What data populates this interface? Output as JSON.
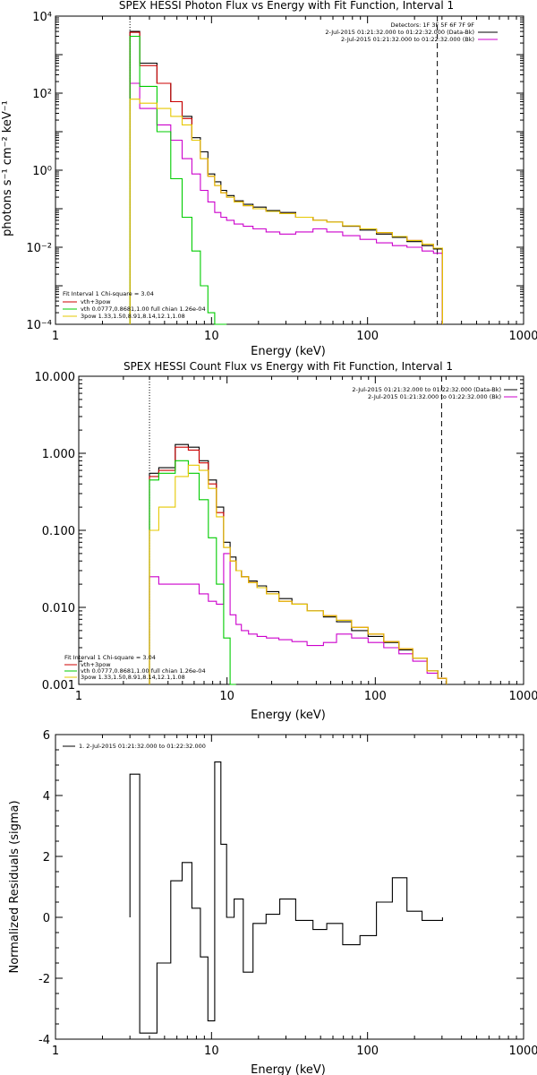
{
  "panels": [
    {
      "title": "SPEX HESSI Photon Flux vs Energy with Fit Function, Interval 1",
      "ylabel": "photons s⁻¹ cm⁻² keV⁻¹",
      "xlabel": "Energy (keV)",
      "yticks": [
        "10⁴",
        "10²",
        "10⁰",
        "10⁻²",
        "10⁻⁴"
      ],
      "xticks": [
        "1",
        "10",
        "100",
        "1000"
      ],
      "info": [
        "Detectors: 1F 3F 5F 6F 7F 9F",
        "2-Jul-2015 01:21:32.000 to 01:22:32.000 (Data-Bk)",
        "2-Jul-2015 01:21:32.000 to 01:22:32.000 (Bk)"
      ],
      "legend": [
        "Fit Interval 1    Chi-square = 3.04",
        "vth+3pow",
        "vth 0.0777,0.8681,1.00  full chian 1.26e-04",
        "3pow 1.33,1.50,8.91,8.14,12.1,1.08"
      ]
    },
    {
      "title": "SPEX HESSI Count Flux vs Energy with Fit Function, Interval 1",
      "ylabel": "",
      "xlabel": "Energy (keV)",
      "yticks": [
        "10.000",
        "1.000",
        "0.100",
        "0.010",
        "0.001"
      ],
      "xticks": [
        "1",
        "10",
        "100",
        "1000"
      ],
      "info": [
        "2-Jul-2015 01:21:32.000 to 01:22:32.000 (Data-Bk)",
        "2-Jul-2015 01:21:32.000 to 01:22:32.000 (Bk)"
      ],
      "legend": [
        "Fit Interval 1    Chi-square = 3.04",
        "vth+3pow",
        "vth 0.0777,0.8681,1.00  full chian 1.26e-04",
        "3pow 1.33,1.50,8.91,8.14,12.1,1.08"
      ]
    },
    {
      "title": "",
      "ylabel": "Normalized Residuals (sigma)",
      "xlabel": "Energy (keV)",
      "yticks": [
        "6",
        "4",
        "2",
        "0",
        "-2",
        "-4"
      ],
      "xticks": [
        "1",
        "10",
        "100",
        "1000"
      ],
      "legend": [
        "1.  2-Jul-2015 01:21:32.000 to 01:22:32.000"
      ]
    }
  ],
  "colors": {
    "data": "#000000",
    "background": "#cc00cc",
    "total_fit": "#cc0000",
    "thermal": "#00cc00",
    "power_law": "#e6c800"
  },
  "chart_data": [
    {
      "type": "line",
      "title": "SPEX HESSI Photon Flux vs Energy with Fit Function, Interval 1",
      "xlabel": "Energy (keV)",
      "ylabel": "photons s-1 cm-2 keV-1",
      "xscale": "log",
      "yscale": "log",
      "xlim": [
        1,
        1000
      ],
      "ylim": [
        0.0001,
        10000
      ],
      "fit_range_keV": [
        3,
        280
      ],
      "x": [
        3,
        4,
        5,
        6,
        7,
        8,
        9,
        10,
        11,
        12,
        13,
        15,
        17,
        20,
        25,
        30,
        40,
        50,
        60,
        80,
        100,
        130,
        160,
        200,
        250,
        280
      ],
      "series": [
        {
          "name": "Data-Bk",
          "values": [
            4000,
            600,
            180,
            60,
            25,
            7,
            3,
            0.8,
            0.5,
            0.3,
            0.22,
            0.16,
            0.13,
            0.11,
            0.09,
            0.08,
            0.06,
            0.05,
            0.045,
            0.035,
            0.028,
            0.022,
            0.018,
            0.014,
            0.011,
            0.009
          ]
        },
        {
          "name": "Bk",
          "values": [
            180,
            40,
            15,
            6,
            2,
            0.8,
            0.3,
            0.15,
            0.08,
            0.06,
            0.05,
            0.04,
            0.035,
            0.03,
            0.025,
            0.022,
            0.025,
            0.03,
            0.025,
            0.02,
            0.016,
            0.013,
            0.011,
            0.01,
            0.008,
            0.007
          ]
        },
        {
          "name": "vth+3pow",
          "values": [
            3800,
            520,
            180,
            60,
            22,
            6,
            2,
            0.7,
            0.4,
            0.26,
            0.2,
            0.15,
            0.12,
            0.1,
            0.085,
            0.075,
            0.06,
            0.05,
            0.045,
            0.036,
            0.03,
            0.024,
            0.019,
            0.015,
            0.012,
            0.0095
          ]
        },
        {
          "name": "vth",
          "values": [
            3000,
            150,
            10,
            0.6,
            0.06,
            0.008,
            0.001,
            0.0002,
            0.0001,
            5e-05,
            null,
            null,
            null,
            null,
            null,
            null,
            null,
            null,
            null,
            null,
            null,
            null,
            null,
            null,
            null,
            null
          ]
        },
        {
          "name": "3pow",
          "values": [
            70,
            55,
            40,
            25,
            15,
            6,
            2,
            0.7,
            0.4,
            0.26,
            0.2,
            0.15,
            0.12,
            0.1,
            0.085,
            0.075,
            0.06,
            0.05,
            0.045,
            0.036,
            0.03,
            0.024,
            0.019,
            0.015,
            0.012,
            0.0095
          ]
        }
      ]
    },
    {
      "type": "line",
      "title": "SPEX HESSI Count Flux vs Energy with Fit Function, Interval 1",
      "xlabel": "Energy (keV)",
      "ylabel": "",
      "xscale": "log",
      "yscale": "log",
      "xlim": [
        1,
        1000
      ],
      "ylim": [
        0.001,
        10
      ],
      "fit_range_keV": [
        3,
        280
      ],
      "x": [
        3,
        4,
        5,
        6,
        7,
        8,
        9,
        10,
        11,
        12,
        13,
        15,
        17,
        20,
        25,
        30,
        40,
        50,
        60,
        80,
        100,
        130,
        160,
        200,
        250,
        280
      ],
      "series": [
        {
          "name": "Data-Bk",
          "values": [
            0.55,
            0.65,
            1.3,
            1.2,
            0.8,
            0.45,
            0.2,
            0.07,
            0.045,
            0.03,
            0.025,
            0.022,
            0.019,
            0.016,
            0.013,
            0.011,
            0.009,
            0.0075,
            0.0065,
            0.005,
            0.0042,
            0.0035,
            0.0028,
            0.0022,
            0.0015,
            0.0012
          ]
        },
        {
          "name": "Bk",
          "values": [
            0.025,
            0.02,
            0.02,
            0.02,
            0.015,
            0.012,
            0.011,
            0.05,
            0.008,
            0.006,
            0.005,
            0.0045,
            0.0042,
            0.004,
            0.0038,
            0.0036,
            0.0032,
            0.0035,
            0.0045,
            0.004,
            0.0035,
            0.003,
            0.0025,
            0.002,
            0.0014,
            0.0012
          ]
        },
        {
          "name": "vth+3pow",
          "values": [
            0.5,
            0.6,
            1.2,
            1.1,
            0.75,
            0.4,
            0.17,
            0.06,
            0.04,
            0.03,
            0.025,
            0.021,
            0.018,
            0.015,
            0.012,
            0.011,
            0.009,
            0.0078,
            0.0068,
            0.0055,
            0.0045,
            0.0036,
            0.0029,
            0.0022,
            0.0015,
            0.0012
          ]
        },
        {
          "name": "vth",
          "values": [
            0.45,
            0.55,
            0.8,
            0.55,
            0.25,
            0.08,
            0.02,
            0.004,
            0.001,
            null,
            null,
            null,
            null,
            null,
            null,
            null,
            null,
            null,
            null,
            null,
            null,
            null,
            null,
            null,
            null,
            null
          ]
        },
        {
          "name": "3pow",
          "values": [
            0.1,
            0.2,
            0.5,
            0.7,
            0.6,
            0.35,
            0.15,
            0.06,
            0.04,
            0.03,
            0.025,
            0.021,
            0.018,
            0.015,
            0.012,
            0.011,
            0.009,
            0.0078,
            0.0068,
            0.0055,
            0.0045,
            0.0036,
            0.0029,
            0.0022,
            0.0015,
            0.0012
          ]
        }
      ]
    },
    {
      "type": "line",
      "title": "",
      "xlabel": "Energy (keV)",
      "ylabel": "Normalized Residuals (sigma)",
      "xscale": "log",
      "yscale": "linear",
      "xlim": [
        1,
        1000
      ],
      "ylim": [
        -4,
        6
      ],
      "x": [
        3,
        4,
        5,
        6,
        7,
        8,
        9,
        10,
        11,
        12,
        13,
        15,
        17,
        20,
        25,
        30,
        40,
        50,
        60,
        80,
        100,
        130,
        160,
        200,
        250,
        280
      ],
      "series": [
        {
          "name": "1.  2-Jul-2015 01:21:32.000 to 01:22:32.000",
          "values": [
            4.7,
            -3.8,
            -1.5,
            1.2,
            1.8,
            0.3,
            -1.3,
            -3.4,
            5.1,
            2.4,
            0.0,
            0.6,
            -1.8,
            -0.2,
            0.1,
            0.6,
            -0.1,
            -0.4,
            -0.2,
            -0.9,
            -0.6,
            0.5,
            1.3,
            0.2,
            -0.1,
            -0.1
          ]
        }
      ]
    }
  ]
}
